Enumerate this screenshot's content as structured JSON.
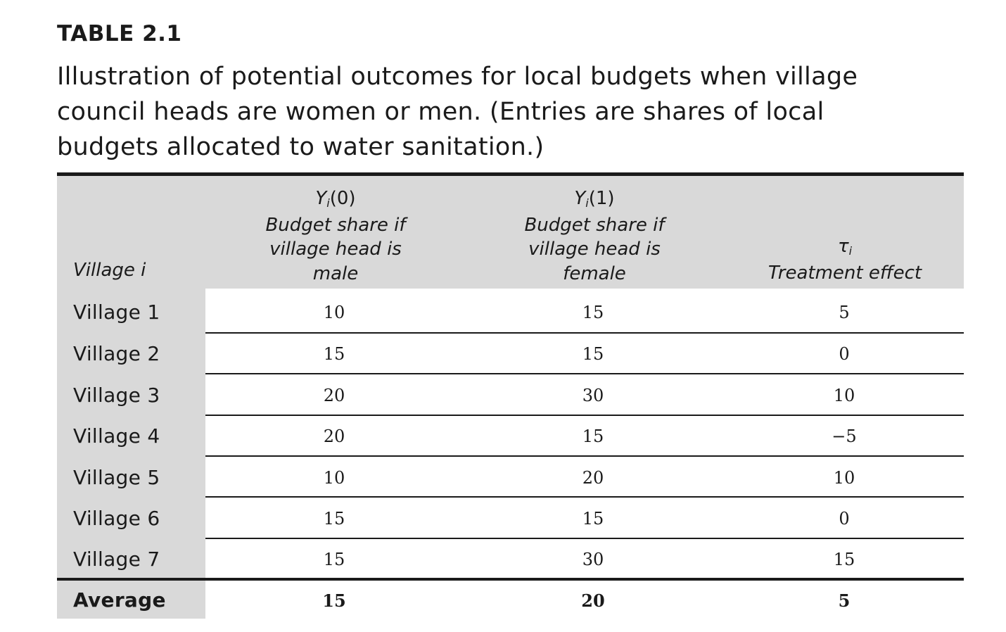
{
  "table_label": "TABLE 2.1",
  "caption_lines": [
    "Illustration of potential outcomes for local budgets when village",
    "council heads are women or men. (Entries are shares of local",
    "budgets allocated to water sanitation.)"
  ],
  "header": {
    "stub": "Village i",
    "col1": {
      "symbol": "Y",
      "sub": "i",
      "arg": "(0)",
      "lines": [
        "Budget share if",
        "village head is",
        "male"
      ]
    },
    "col2": {
      "symbol": "Y",
      "sub": "i",
      "arg": "(1)",
      "lines": [
        "Budget share if",
        "village head is",
        "female"
      ]
    },
    "col3": {
      "symbol": "τ",
      "sub": "i",
      "lines": [
        "Treatment effect"
      ]
    }
  },
  "rows": [
    {
      "village": "Village 1",
      "y0": "10",
      "y1": "15",
      "tau": "5"
    },
    {
      "village": "Village 2",
      "y0": "15",
      "y1": "15",
      "tau": "0"
    },
    {
      "village": "Village 3",
      "y0": "20",
      "y1": "30",
      "tau": "10"
    },
    {
      "village": "Village 4",
      "y0": "20",
      "y1": "15",
      "tau": "−5"
    },
    {
      "village": "Village 5",
      "y0": "10",
      "y1": "20",
      "tau": "10"
    },
    {
      "village": "Village 6",
      "y0": "15",
      "y1": "15",
      "tau": "0"
    },
    {
      "village": "Village 7",
      "y0": "15",
      "y1": "30",
      "tau": "15"
    }
  ],
  "average": {
    "label": "Average",
    "y0": "15",
    "y1": "20",
    "tau": "5"
  }
}
